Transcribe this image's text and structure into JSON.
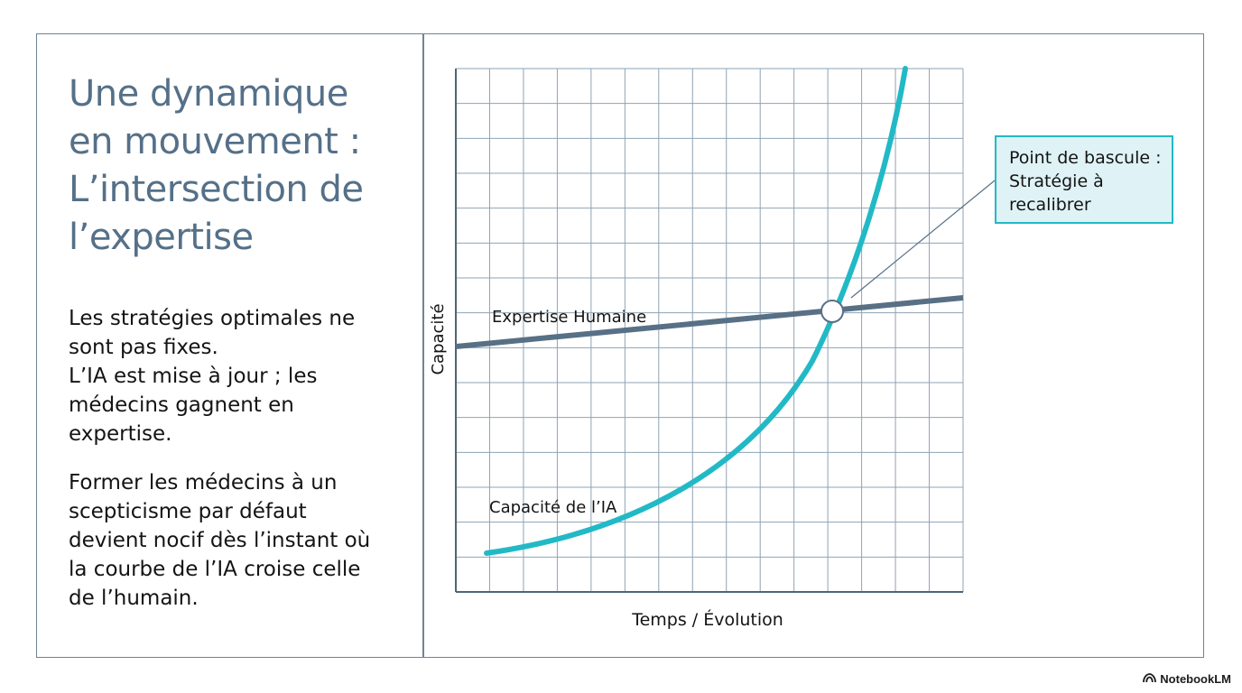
{
  "title_lines": [
    "Une dynamique",
    "en mouvement :",
    "L’intersection de",
    "l’expertise"
  ],
  "paragraph1_lines": [
    "Les stratégies optimales ne",
    "sont pas fixes.",
    "L’IA est mise à jour ; les",
    "médecins gagnent en",
    "expertise."
  ],
  "paragraph2_lines": [
    "Former les médecins à un",
    "scepticisme par défaut",
    "devient nocif dès l’instant où",
    "la courbe de l’IA croise celle",
    "de l’humain."
  ],
  "diagram": {
    "xlabel": "Temps / Évolution",
    "ylabel": "Capacité",
    "human_label": "Expertise Humaine",
    "ai_label": "Capacité de l’IA",
    "callout_lines": [
      "Point de bascule :",
      "Stratégie à",
      "recalibrer"
    ],
    "grid": true,
    "colors": {
      "human_line": "#587085",
      "ai_curve": "#22b9c6",
      "grid": "#8ea3b4",
      "axis": "#4f6577",
      "title": "#557088",
      "callout_border": "#22b9c6",
      "callout_fill": "#dff3f6"
    }
  },
  "brand": {
    "name": "NotebookLM",
    "icon": "notebooklm-logo-icon"
  }
}
